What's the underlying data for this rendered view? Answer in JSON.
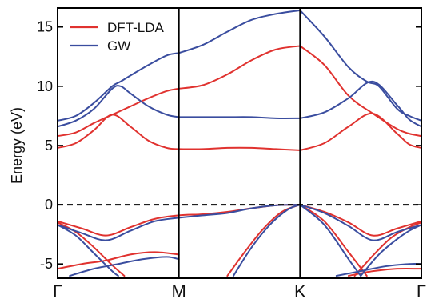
{
  "chart_data": {
    "type": "line",
    "title": "",
    "xlabel": "",
    "ylabel": "Energy (eV)",
    "ylim": [
      -6.2,
      16.6
    ],
    "grid": false,
    "legend_position": "top-left",
    "x_ticks": [
      {
        "label": "Γ",
        "x": 0
      },
      {
        "label": "M",
        "x": 1
      },
      {
        "label": "K",
        "x": 2
      },
      {
        "label": "Γ",
        "x": 3
      }
    ],
    "y_ticks": [
      -5,
      0,
      5,
      10,
      15
    ],
    "reference_line": {
      "y": 0,
      "style": "dashed"
    },
    "vertical_lines": [
      1,
      2
    ],
    "series": [
      {
        "name": "DFT-LDA",
        "color": "#e0322f",
        "legend": true,
        "x": [
          0,
          0.15,
          0.3,
          0.45,
          0.6,
          0.75,
          0.9,
          1.0
        ],
        "y": [
          4.8,
          5.2,
          6.3,
          7.6,
          6.6,
          5.4,
          4.8,
          4.7
        ]
      },
      {
        "name": "DFT-LDA",
        "color": "#e0322f",
        "legend": false,
        "x": [
          0,
          0.15,
          0.3,
          0.45,
          0.6,
          0.75,
          0.9,
          1.0
        ],
        "y": [
          5.8,
          6.1,
          6.9,
          7.6,
          8.3,
          9.0,
          9.6,
          9.8
        ]
      },
      {
        "name": "DFT-LDA",
        "color": "#e0322f",
        "legend": false,
        "x": [
          1.0,
          1.2,
          1.4,
          1.6,
          1.8,
          2.0
        ],
        "y": [
          4.7,
          4.7,
          4.8,
          4.8,
          4.7,
          4.6
        ]
      },
      {
        "name": "DFT-LDA",
        "color": "#e0322f",
        "legend": false,
        "x": [
          1.0,
          1.2,
          1.4,
          1.6,
          1.8,
          2.0
        ],
        "y": [
          9.8,
          10.1,
          11.0,
          12.2,
          13.1,
          13.4
        ]
      },
      {
        "name": "DFT-LDA",
        "color": "#e0322f",
        "legend": false,
        "x": [
          2.0,
          2.2,
          2.4,
          2.6,
          2.8,
          2.9,
          3.0
        ],
        "y": [
          4.6,
          5.2,
          6.6,
          7.7,
          6.0,
          5.1,
          4.8
        ]
      },
      {
        "name": "DFT-LDA",
        "color": "#e0322f",
        "legend": false,
        "x": [
          2.0,
          2.2,
          2.4,
          2.6,
          2.8,
          2.9,
          3.0
        ],
        "y": [
          13.4,
          11.8,
          9.2,
          7.7,
          6.4,
          6.0,
          5.8
        ]
      },
      {
        "name": "DFT-LDA",
        "color": "#e0322f",
        "legend": false,
        "x": [
          0,
          0.2,
          0.4,
          0.6,
          0.8,
          1.0,
          1.2,
          1.4,
          1.6,
          1.8,
          2.0
        ],
        "y": [
          -1.4,
          -2.0,
          -2.6,
          -1.9,
          -1.2,
          -0.9,
          -0.8,
          -0.6,
          -0.3,
          -0.05,
          0.0
        ]
      },
      {
        "name": "DFT-LDA",
        "color": "#e0322f",
        "legend": false,
        "x": [
          2.0,
          2.2,
          2.4,
          2.6,
          2.8,
          3.0
        ],
        "y": [
          0.0,
          -0.6,
          -1.5,
          -2.6,
          -2.0,
          -1.4
        ]
      },
      {
        "name": "DFT-LDA",
        "color": "#e0322f",
        "legend": false,
        "x": [
          0,
          0.2,
          0.4,
          0.6,
          0.8,
          1.0
        ],
        "y": [
          -5.4,
          -5.0,
          -4.7,
          -4.2,
          -4.0,
          -4.2
        ]
      },
      {
        "name": "DFT-LDA",
        "color": "#e0322f",
        "legend": false,
        "x": [
          2.4,
          2.6,
          2.8,
          3.0
        ],
        "y": [
          -6.0,
          -5.6,
          -5.4,
          -5.4
        ]
      },
      {
        "name": "DFT-LDA",
        "color": "#e0322f",
        "legend": false,
        "x": [
          0,
          0.15,
          0.3,
          0.45,
          0.55
        ],
        "y": [
          -1.5,
          -2.3,
          -3.6,
          -5.1,
          -6.0
        ]
      },
      {
        "name": "DFT-LDA",
        "color": "#e0322f",
        "legend": false,
        "x": [
          1.4,
          1.55,
          1.7,
          1.85,
          2.0
        ],
        "y": [
          -6.0,
          -3.9,
          -2.0,
          -0.6,
          0.0
        ]
      },
      {
        "name": "DFT-LDA",
        "color": "#e0322f",
        "legend": false,
        "x": [
          2.0,
          2.2,
          2.4,
          2.55
        ],
        "y": [
          0.0,
          -1.4,
          -4.0,
          -6.0
        ]
      },
      {
        "name": "DFT-LDA",
        "color": "#e0322f",
        "legend": false,
        "x": [
          2.45,
          2.6,
          2.75,
          2.9,
          3.0
        ],
        "y": [
          -6.0,
          -4.3,
          -2.8,
          -1.9,
          -1.5
        ]
      },
      {
        "name": "GW",
        "color": "#3a4d9f",
        "legend": true,
        "x": [
          0,
          0.15,
          0.3,
          0.45,
          0.52,
          0.6,
          0.75,
          0.9,
          1.0
        ],
        "y": [
          6.6,
          7.1,
          8.1,
          9.8,
          10.0,
          9.4,
          8.3,
          7.6,
          7.4
        ]
      },
      {
        "name": "GW",
        "color": "#3a4d9f",
        "legend": true,
        "x": [
          0,
          0.15,
          0.3,
          0.45,
          0.52,
          0.6,
          0.75,
          0.9,
          1.0
        ],
        "y": [
          7.1,
          7.5,
          8.6,
          10.0,
          10.4,
          10.9,
          11.8,
          12.6,
          12.8
        ]
      },
      {
        "name": "GW",
        "color": "#3a4d9f",
        "legend": false,
        "x": [
          1.0,
          1.2,
          1.4,
          1.6,
          1.8,
          2.0
        ],
        "y": [
          7.4,
          7.4,
          7.4,
          7.4,
          7.3,
          7.3
        ]
      },
      {
        "name": "GW",
        "color": "#3a4d9f",
        "legend": false,
        "x": [
          1.0,
          1.2,
          1.4,
          1.6,
          1.8,
          2.0
        ],
        "y": [
          12.8,
          13.5,
          14.6,
          15.6,
          16.1,
          16.4
        ]
      },
      {
        "name": "GW",
        "color": "#3a4d9f",
        "legend": false,
        "x": [
          2.0,
          2.2,
          2.4,
          2.6,
          2.8,
          2.9,
          3.0
        ],
        "y": [
          7.3,
          7.8,
          9.0,
          10.4,
          8.4,
          7.2,
          6.6
        ]
      },
      {
        "name": "GW",
        "color": "#3a4d9f",
        "legend": false,
        "x": [
          2.0,
          2.2,
          2.4,
          2.55,
          2.65,
          2.8,
          2.9,
          3.0
        ],
        "y": [
          16.4,
          14.2,
          11.6,
          10.4,
          10.0,
          8.1,
          7.5,
          7.1
        ]
      },
      {
        "name": "GW",
        "color": "#3a4d9f",
        "legend": false,
        "x": [
          0,
          0.2,
          0.4,
          0.6,
          0.8,
          1.0,
          1.2,
          1.4,
          1.6,
          1.8,
          2.0
        ],
        "y": [
          -1.7,
          -2.4,
          -3.0,
          -2.2,
          -1.4,
          -1.1,
          -0.9,
          -0.7,
          -0.3,
          -0.05,
          0.0
        ]
      },
      {
        "name": "GW",
        "color": "#3a4d9f",
        "legend": false,
        "x": [
          2.0,
          2.2,
          2.4,
          2.6,
          2.8,
          3.0
        ],
        "y": [
          0.0,
          -0.7,
          -1.8,
          -3.0,
          -2.3,
          -1.7
        ]
      },
      {
        "name": "GW",
        "color": "#3a4d9f",
        "legend": false,
        "x": [
          0,
          0.15,
          0.3,
          0.45,
          0.5
        ],
        "y": [
          -1.7,
          -2.6,
          -4.1,
          -5.6,
          -6.0
        ]
      },
      {
        "name": "GW",
        "color": "#3a4d9f",
        "legend": false,
        "x": [
          1.45,
          1.6,
          1.75,
          1.9,
          2.0
        ],
        "y": [
          -6.0,
          -3.6,
          -1.7,
          -0.4,
          0.0
        ]
      },
      {
        "name": "GW",
        "color": "#3a4d9f",
        "legend": false,
        "x": [
          2.0,
          2.2,
          2.4,
          2.5
        ],
        "y": [
          0.0,
          -1.7,
          -4.6,
          -6.0
        ]
      },
      {
        "name": "GW",
        "color": "#3a4d9f",
        "legend": false,
        "x": [
          2.5,
          2.65,
          2.8,
          2.9,
          3.0
        ],
        "y": [
          -6.0,
          -4.2,
          -2.9,
          -2.2,
          -1.7
        ]
      },
      {
        "name": "GW",
        "color": "#3a4d9f",
        "legend": false,
        "x": [
          0.1,
          0.3,
          0.5,
          0.7,
          0.9,
          1.0
        ],
        "y": [
          -6.0,
          -5.4,
          -5.0,
          -4.6,
          -4.4,
          -4.6
        ]
      },
      {
        "name": "GW",
        "color": "#3a4d9f",
        "legend": false,
        "x": [
          2.3,
          2.5,
          2.7,
          2.9,
          3.0
        ],
        "y": [
          -6.0,
          -5.6,
          -5.2,
          -5.0,
          -5.0
        ]
      }
    ]
  }
}
